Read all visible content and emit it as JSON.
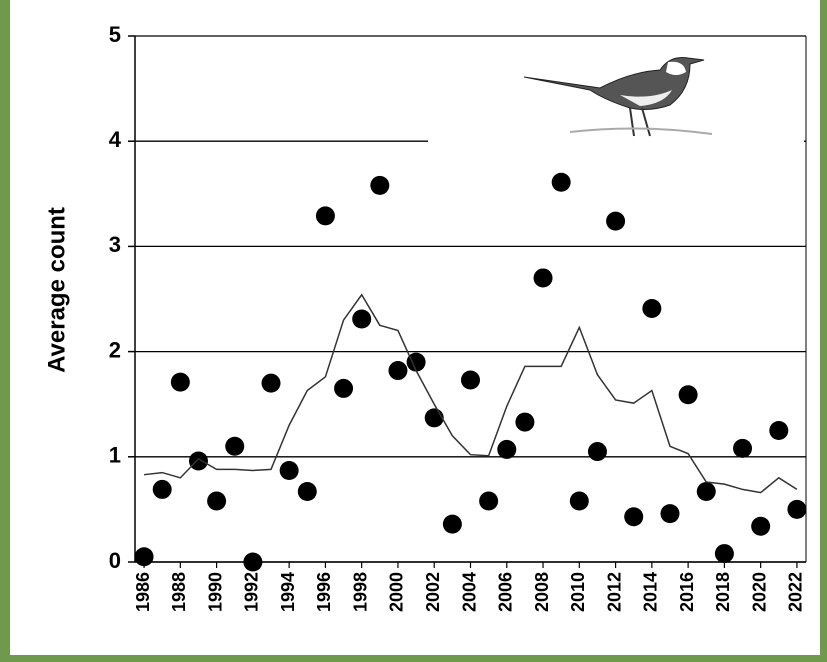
{
  "chart_data": {
    "type": "scatter",
    "y_label": "Average count",
    "x": [
      1986,
      1987,
      1988,
      1989,
      1990,
      1991,
      1992,
      1993,
      1994,
      1995,
      1996,
      1997,
      1998,
      1999,
      2000,
      2001,
      2002,
      2003,
      2004,
      2005,
      2006,
      2007,
      2008,
      2009,
      2010,
      2011,
      2012,
      2013,
      2014,
      2015,
      2016,
      2017,
      2018,
      2019,
      2020,
      2021,
      2022
    ],
    "series": [
      {
        "style": "markers",
        "color": "#000000",
        "values": [
          0.05,
          0.69,
          1.71,
          0.96,
          0.58,
          1.1,
          0.0,
          1.7,
          0.87,
          0.67,
          3.29,
          1.65,
          2.31,
          3.58,
          1.82,
          1.9,
          1.37,
          0.36,
          1.73,
          0.58,
          1.07,
          1.33,
          2.7,
          3.61,
          0.58,
          1.05,
          3.24,
          0.43,
          2.41,
          0.46,
          1.59,
          0.67,
          0.08,
          1.08,
          0.34,
          1.25,
          0.5
        ]
      },
      {
        "style": "line",
        "color": "#333333",
        "values": [
          0.83,
          0.85,
          0.8,
          0.98,
          0.88,
          0.88,
          0.87,
          0.88,
          1.3,
          1.63,
          1.76,
          2.3,
          2.54,
          2.25,
          2.2,
          1.82,
          1.5,
          1.2,
          1.02,
          1.01,
          1.48,
          1.86,
          1.86,
          1.86,
          2.23,
          1.78,
          1.54,
          1.51,
          1.63,
          1.1,
          1.03,
          0.76,
          0.74,
          0.69,
          0.66,
          0.8,
          0.69
        ]
      }
    ],
    "xlim": [
      1985.5,
      2022.5
    ],
    "xticks": [
      1986,
      1988,
      1990,
      1992,
      1994,
      1996,
      1998,
      2000,
      2002,
      2004,
      2006,
      2008,
      2010,
      2012,
      2014,
      2016,
      2018,
      2020,
      2022
    ],
    "ylim": [
      0,
      5
    ],
    "yticks": [
      0,
      1,
      2,
      3,
      4,
      5
    ],
    "grid": true
  }
}
